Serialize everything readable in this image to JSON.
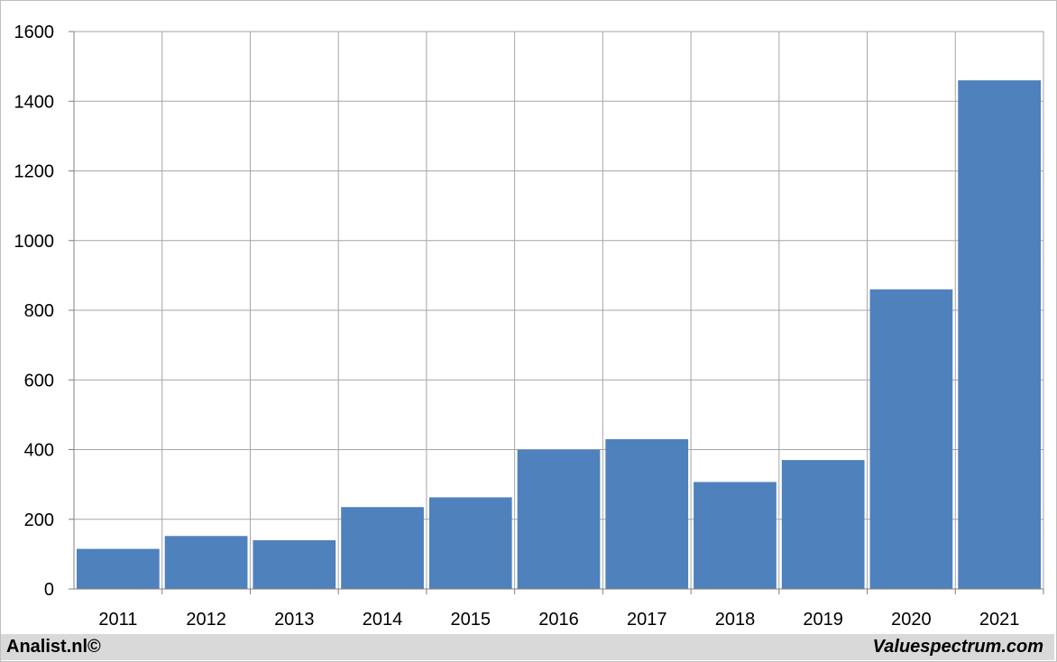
{
  "chart_data": {
    "type": "bar",
    "title": "",
    "xlabel": "",
    "ylabel": "",
    "categories": [
      "2011",
      "2012",
      "2013",
      "2014",
      "2015",
      "2016",
      "2017",
      "2018",
      "2019",
      "2020",
      "2021"
    ],
    "values": [
      115,
      152,
      140,
      235,
      263,
      400,
      430,
      307,
      370,
      860,
      1460
    ],
    "ylim": [
      0,
      1600
    ],
    "yticks": [
      0,
      200,
      400,
      600,
      800,
      1000,
      1200,
      1400,
      1600
    ],
    "grid": true,
    "bar_color": "#4f81bd",
    "grid_color": "#a6a6a6"
  },
  "footer": {
    "left_text": "Analist.nl©",
    "right_text": "Valuespectrum.com"
  },
  "colors": {
    "footer_background": "#d9d9d9",
    "border": "#bfbfbf"
  }
}
